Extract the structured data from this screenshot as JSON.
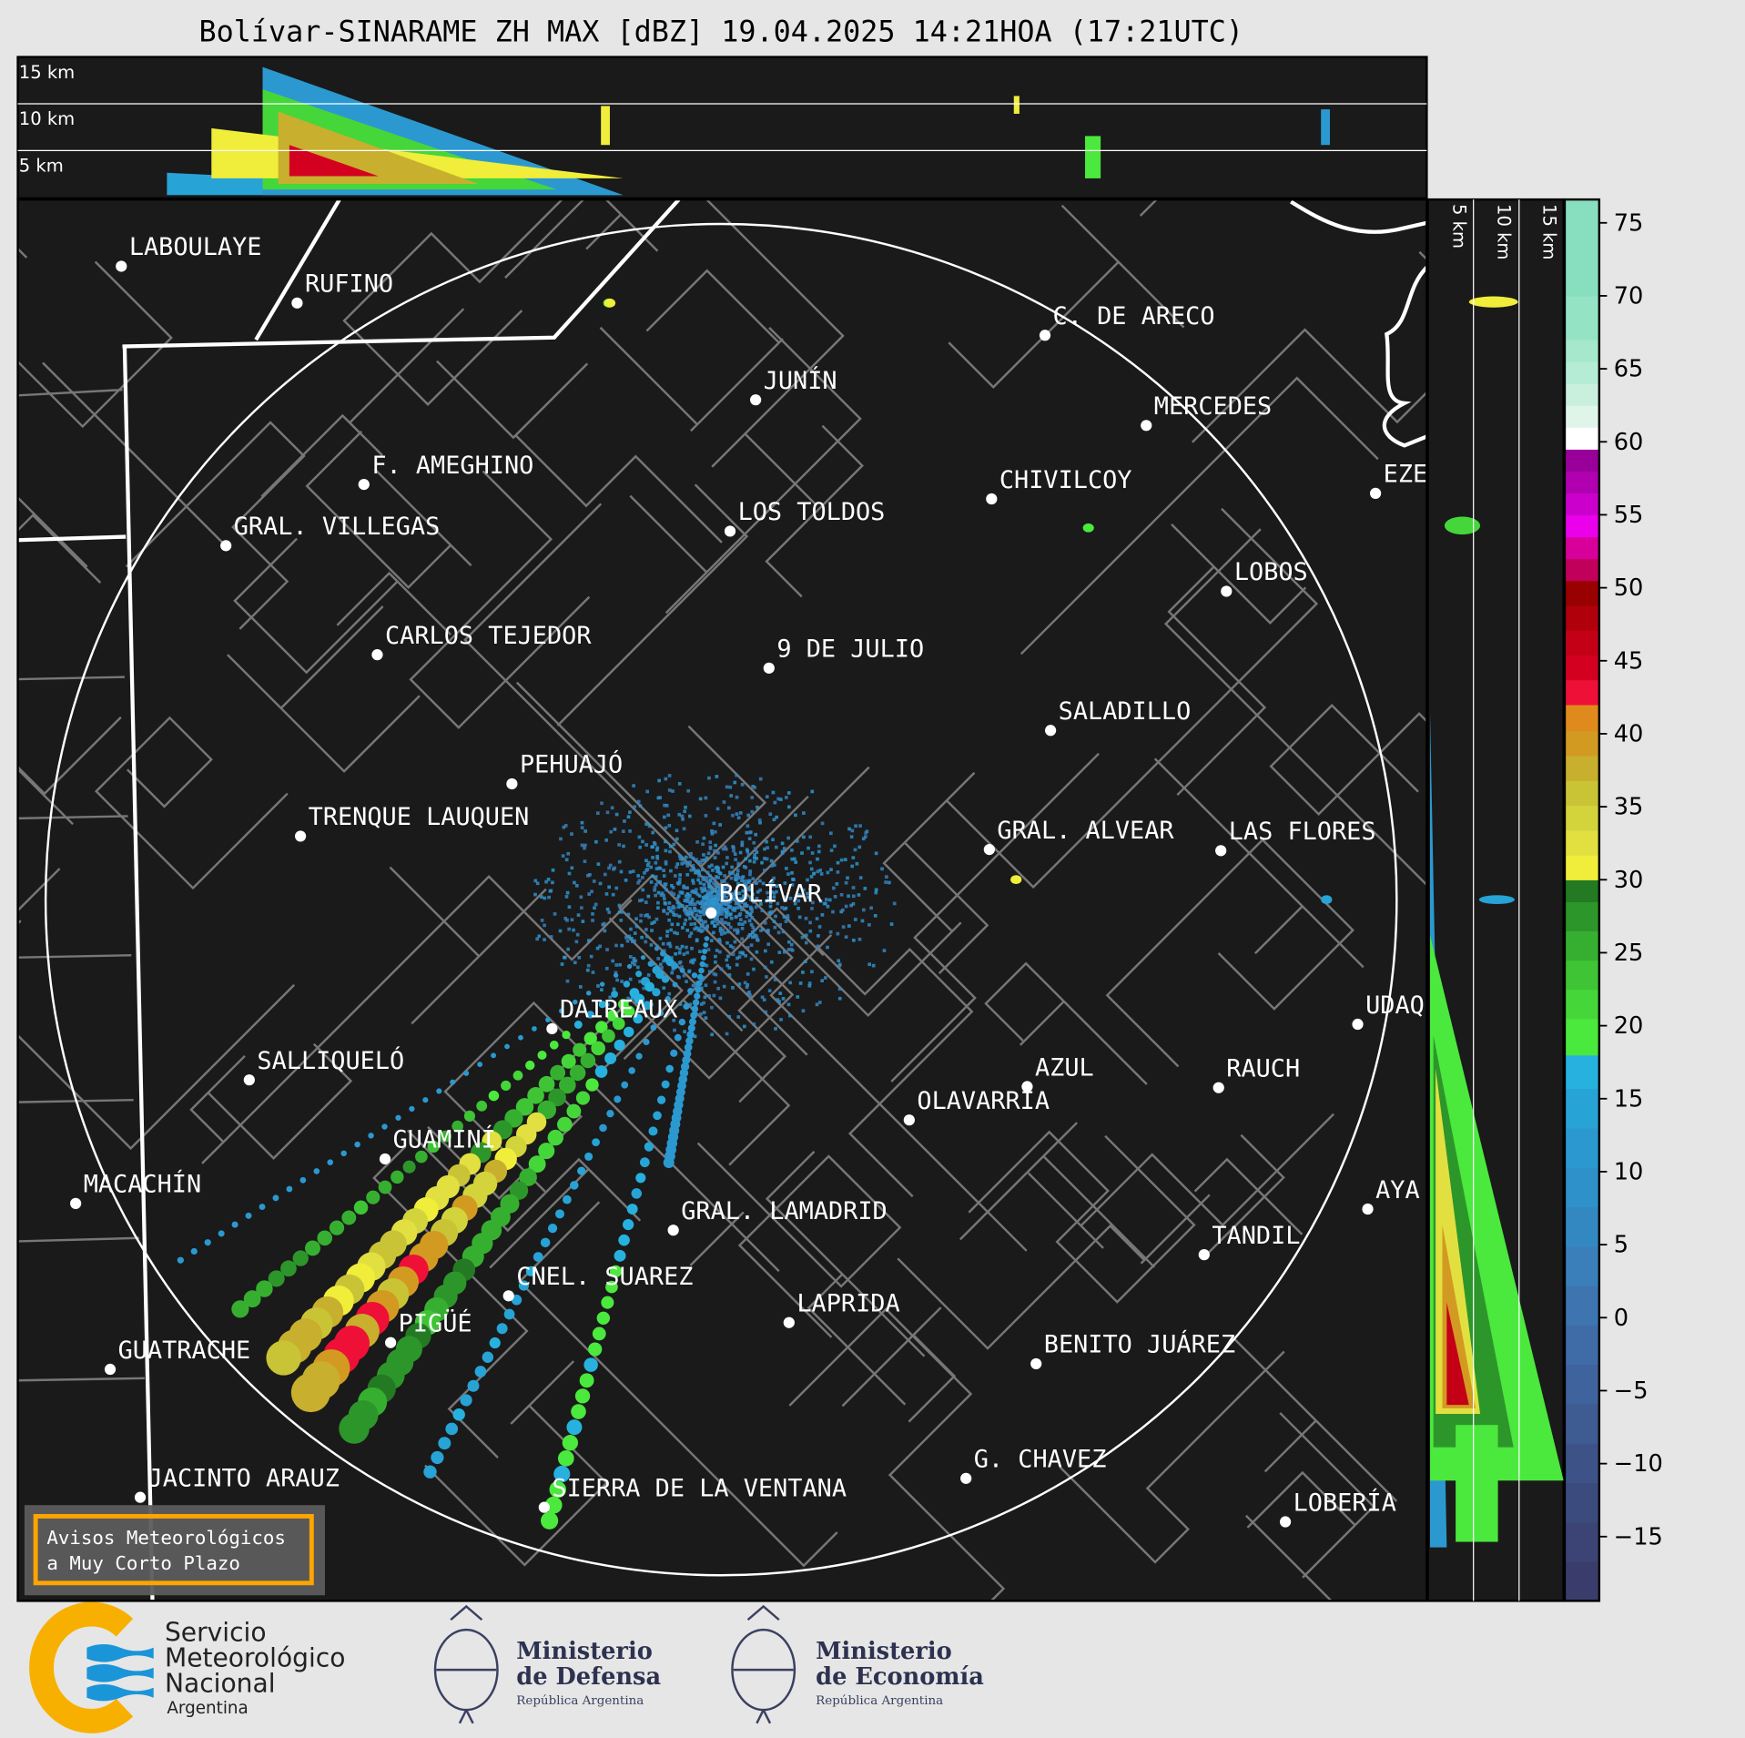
{
  "title": "Bolívar-SINARAME ZH MAX [dBZ] 19.04.2025 14:21HOA (17:21UTC)",
  "top_panel": {
    "height_labels": [
      "15 km",
      "10 km",
      "5 km"
    ]
  },
  "side_panel": {
    "height_labels": [
      "5 km",
      "10 km",
      "15 km"
    ]
  },
  "map": {
    "radar_site": "BOLÍVAR",
    "cities": [
      "LABOULAYE",
      "RUFINO",
      "C. DE ARECO",
      "JUNÍN",
      "MERCEDES",
      "F. AMEGHINO",
      "CHIVILCOY",
      "EZE",
      "GRAL. VILLEGAS",
      "LOS TOLDOS",
      "LOBOS",
      "CARLOS TEJEDOR",
      "9 DE JULIO",
      "SALADILLO",
      "PEHUAJÓ",
      "TRENQUE LAUQUEN",
      "GRAL. ALVEAR",
      "LAS FLORES",
      "BOLÍVAR",
      "DAIREAUX",
      "UDAQ",
      "SALLIQUELÓ",
      "AZUL",
      "RAUCH",
      "OLAVARRÍA",
      "GUAMINÍ",
      "MACACHÍN",
      "AYA",
      "GRAL. LAMADRID",
      "TANDIL",
      "CNEL. SUAREZ",
      "LAPRIDA",
      "PIGÜÉ",
      "GUATRACHE",
      "BENITO JUÁREZ",
      "G. CHAVEZ",
      "JACINTO ARAUZ",
      "SIERRA DE LA VENTANA",
      "LOBERÍA"
    ],
    "background_color": "#1a1a1a"
  },
  "warning_box": {
    "line1": "Avisos Meteorológicos",
    "line2": "a Muy Corto Plazo",
    "border_color": "#ffa500"
  },
  "colorbar": {
    "unit": "dBZ",
    "ticks": [
      75,
      70,
      65,
      60,
      55,
      50,
      45,
      40,
      35,
      30,
      25,
      20,
      15,
      10,
      5,
      0,
      -5,
      -10,
      -15
    ],
    "range": [
      -19.4,
      76.6
    ],
    "stops": [
      {
        "from": -19.4,
        "color": "#3a3d6b"
      },
      {
        "from": -16.7,
        "color": "#3b4474"
      },
      {
        "from": -14,
        "color": "#3c4b7e"
      },
      {
        "from": -11.3,
        "color": "#3d5388"
      },
      {
        "from": -8.6,
        "color": "#3e5b92"
      },
      {
        "from": -5.9,
        "color": "#3f639c"
      },
      {
        "from": -3.2,
        "color": "#3f6ca6"
      },
      {
        "from": -0.5,
        "color": "#3e75b0"
      },
      {
        "from": 2.2,
        "color": "#3a7fba"
      },
      {
        "from": 4.9,
        "color": "#3488c2"
      },
      {
        "from": 7.6,
        "color": "#2e91c9"
      },
      {
        "from": 10.3,
        "color": "#2b99d0"
      },
      {
        "from": 13,
        "color": "#27a3d6"
      },
      {
        "from": 15.7,
        "color": "#27b1df"
      },
      {
        "from": 18,
        "color": "#4be83d"
      },
      {
        "from": 20.5,
        "color": "#45d63a"
      },
      {
        "from": 22.5,
        "color": "#3ec435"
      },
      {
        "from": 24.5,
        "color": "#36af30"
      },
      {
        "from": 26.5,
        "color": "#2d962a"
      },
      {
        "from": 28.5,
        "color": "#237a22"
      },
      {
        "from": 30,
        "color": "#f0ee3a"
      },
      {
        "from": 31.7,
        "color": "#e2e040"
      },
      {
        "from": 33.4,
        "color": "#d3d33c"
      },
      {
        "from": 35.1,
        "color": "#c9c436"
      },
      {
        "from": 36.8,
        "color": "#c8af2d"
      },
      {
        "from": 38.5,
        "color": "#d39a22"
      },
      {
        "from": 40.2,
        "color": "#df8a1c"
      },
      {
        "from": 42,
        "color": "#ee1037"
      },
      {
        "from": 43.7,
        "color": "#d30020"
      },
      {
        "from": 45.4,
        "color": "#c40016"
      },
      {
        "from": 47.1,
        "color": "#af000c"
      },
      {
        "from": 48.8,
        "color": "#990000"
      },
      {
        "from": 50.5,
        "color": "#c0005a"
      },
      {
        "from": 52,
        "color": "#d8009a"
      },
      {
        "from": 53.5,
        "color": "#ea00ea"
      },
      {
        "from": 55,
        "color": "#cc00cc"
      },
      {
        "from": 56.5,
        "color": "#b000b0"
      },
      {
        "from": 58,
        "color": "#990099"
      },
      {
        "from": 59.5,
        "color": "#ffffff"
      },
      {
        "from": 61,
        "color": "#dff5ea"
      },
      {
        "from": 62.5,
        "color": "#c8f0dd"
      },
      {
        "from": 64,
        "color": "#b5ecd5"
      },
      {
        "from": 65.5,
        "color": "#a6e8cc"
      },
      {
        "from": 67,
        "color": "#95e3c5"
      },
      {
        "from": 70,
        "color": "#88dfbf"
      }
    ]
  },
  "footer": {
    "smn": {
      "line1": "Servicio",
      "line2": "Meteorológico",
      "line3": "Nacional",
      "line4": "Argentina"
    },
    "defensa": {
      "line1": "Ministerio",
      "line2": "de Defensa",
      "line3": "República Argentina"
    },
    "economia": {
      "line1": "Ministerio",
      "line2": "de Economía",
      "line3": "República Argentina"
    }
  }
}
